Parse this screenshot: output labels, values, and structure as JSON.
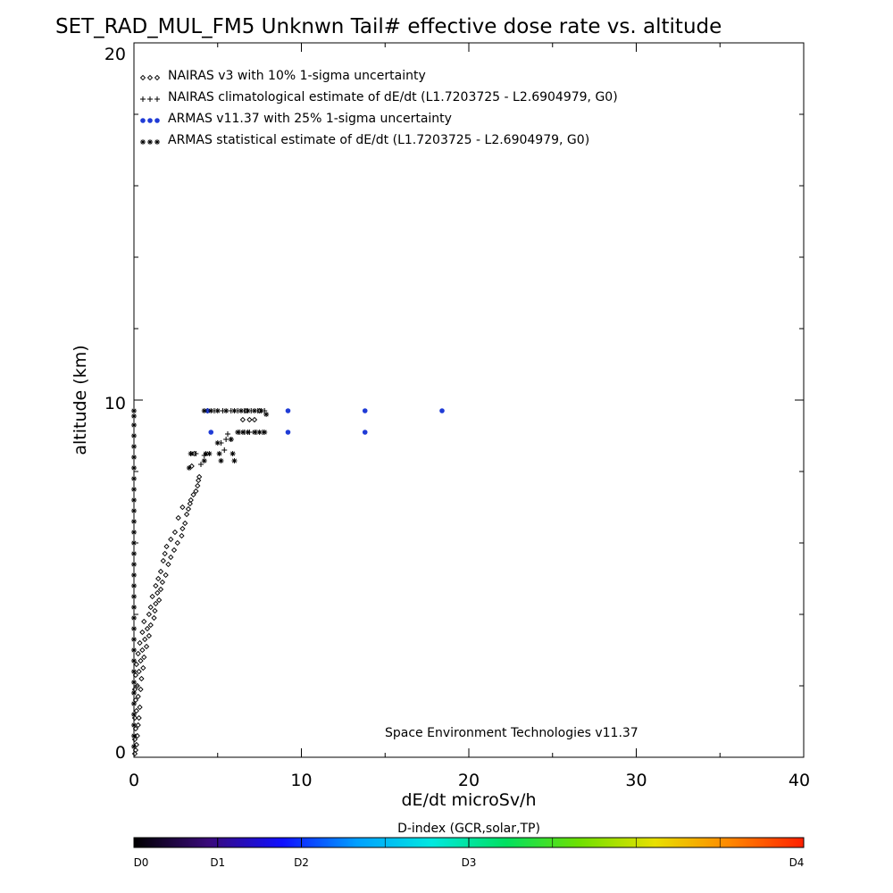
{
  "chart_data": {
    "type": "scatter",
    "title": "SET_RAD_MUL_FM5 Unknwn Tail#  effective dose rate vs. altitude",
    "xlabel": "dE/dt microSv/h",
    "ylabel": "altitude (km)",
    "xlim": [
      0,
      40
    ],
    "ylim": [
      0,
      20
    ],
    "x_ticks": [
      "0",
      "10",
      "20",
      "30",
      "40"
    ],
    "y_ticks": [
      "0",
      "10",
      "20"
    ],
    "grid": false,
    "legend_position": "top-left",
    "annotation": "Space Environment Technologies v11.37",
    "series": [
      {
        "name": "NAIRAS v3 with 10% 1-sigma uncertainty",
        "marker": "diamond",
        "color": "#000000",
        "points": [
          [
            0.05,
            0.1
          ],
          [
            0.1,
            0.2
          ],
          [
            0.15,
            0.35
          ],
          [
            0.05,
            0.5
          ],
          [
            0.2,
            0.6
          ],
          [
            0.1,
            0.8
          ],
          [
            0.25,
            0.9
          ],
          [
            0.05,
            1.1
          ],
          [
            0.3,
            1.1
          ],
          [
            0.15,
            1.3
          ],
          [
            0.35,
            1.4
          ],
          [
            0.1,
            1.6
          ],
          [
            0.25,
            1.7
          ],
          [
            0.05,
            1.9
          ],
          [
            0.4,
            1.9
          ],
          [
            0.2,
            2.0
          ],
          [
            0.45,
            2.2
          ],
          [
            0.1,
            2.3
          ],
          [
            0.3,
            2.4
          ],
          [
            0.55,
            2.5
          ],
          [
            0.15,
            2.6
          ],
          [
            0.4,
            2.7
          ],
          [
            0.6,
            2.8
          ],
          [
            0.25,
            2.9
          ],
          [
            0.5,
            3.0
          ],
          [
            0.75,
            3.1
          ],
          [
            0.35,
            3.2
          ],
          [
            0.65,
            3.3
          ],
          [
            0.9,
            3.4
          ],
          [
            0.5,
            3.5
          ],
          [
            0.8,
            3.6
          ],
          [
            1.0,
            3.7
          ],
          [
            0.6,
            3.8
          ],
          [
            1.2,
            3.9
          ],
          [
            0.9,
            4.0
          ],
          [
            1.25,
            4.1
          ],
          [
            1.0,
            4.2
          ],
          [
            1.3,
            4.3
          ],
          [
            1.5,
            4.4
          ],
          [
            1.1,
            4.5
          ],
          [
            1.4,
            4.6
          ],
          [
            1.6,
            4.7
          ],
          [
            1.3,
            4.8
          ],
          [
            1.7,
            4.9
          ],
          [
            1.45,
            5.0
          ],
          [
            1.9,
            5.1
          ],
          [
            1.6,
            5.2
          ],
          [
            2.05,
            5.4
          ],
          [
            1.75,
            5.5
          ],
          [
            2.2,
            5.6
          ],
          [
            1.85,
            5.7
          ],
          [
            2.4,
            5.8
          ],
          [
            1.95,
            5.9
          ],
          [
            2.6,
            6.0
          ],
          [
            2.2,
            6.1
          ],
          [
            2.85,
            6.2
          ],
          [
            2.45,
            6.3
          ],
          [
            2.9,
            6.4
          ],
          [
            3.05,
            6.55
          ],
          [
            2.65,
            6.7
          ],
          [
            3.15,
            6.8
          ],
          [
            3.25,
            6.95
          ],
          [
            2.9,
            7.0
          ],
          [
            3.35,
            7.1
          ],
          [
            3.4,
            7.2
          ],
          [
            3.55,
            7.35
          ],
          [
            3.7,
            7.45
          ],
          [
            3.8,
            7.6
          ],
          [
            3.85,
            7.75
          ],
          [
            3.9,
            7.85
          ],
          [
            3.45,
            8.15
          ],
          [
            3.6,
            8.5
          ],
          [
            6.5,
            9.45
          ],
          [
            6.9,
            9.45
          ],
          [
            7.2,
            9.45
          ],
          [
            6.7,
            9.7
          ],
          [
            7.5,
            9.7
          ]
        ]
      },
      {
        "name": "NAIRAS climatological estimate of dE/dt (L1.7203725 - L2.6904979, G0)",
        "marker": "plus",
        "color": "#000000",
        "points": [
          [
            3.4,
            8.5
          ],
          [
            3.7,
            8.5
          ],
          [
            4.0,
            8.2
          ],
          [
            4.2,
            8.45
          ],
          [
            5.2,
            8.8
          ],
          [
            5.5,
            8.9
          ],
          [
            5.4,
            8.6
          ],
          [
            5.8,
            8.9
          ],
          [
            5.6,
            9.05
          ],
          [
            6.3,
            9.1
          ],
          [
            6.6,
            9.1
          ],
          [
            6.9,
            9.1
          ],
          [
            7.3,
            9.1
          ],
          [
            7.7,
            9.1
          ],
          [
            4.4,
            9.7
          ],
          [
            4.8,
            9.7
          ],
          [
            5.3,
            9.7
          ],
          [
            5.8,
            9.7
          ],
          [
            6.2,
            9.7
          ],
          [
            6.6,
            9.7
          ],
          [
            7.0,
            9.7
          ],
          [
            7.4,
            9.7
          ],
          [
            7.8,
            9.7
          ]
        ]
      },
      {
        "name": "ARMAS v11.37 with 25% 1-sigma uncertainty",
        "marker": "dot",
        "color": "#1f3bd6",
        "points": [
          [
            4.6,
            9.1
          ],
          [
            9.2,
            9.1
          ],
          [
            13.8,
            9.1
          ],
          [
            4.4,
            9.7
          ],
          [
            9.2,
            9.7
          ],
          [
            13.8,
            9.7
          ],
          [
            18.4,
            9.7
          ]
        ]
      },
      {
        "name": "ARMAS statistical estimate of dE/dt (L1.7203725 - L2.6904979, G0)",
        "marker": "asterisk",
        "color": "#000000",
        "points": [
          [
            0.0,
            0.3
          ],
          [
            0.0,
            0.6
          ],
          [
            0.0,
            0.9
          ],
          [
            0.0,
            1.2
          ],
          [
            0.0,
            1.5
          ],
          [
            0.0,
            1.8
          ],
          [
            0.0,
            2.1
          ],
          [
            0.0,
            2.4
          ],
          [
            0.0,
            2.7
          ],
          [
            0.0,
            3.0
          ],
          [
            0.0,
            3.3
          ],
          [
            0.0,
            3.6
          ],
          [
            0.0,
            3.9
          ],
          [
            0.0,
            4.2
          ],
          [
            0.0,
            4.5
          ],
          [
            0.0,
            4.8
          ],
          [
            0.0,
            5.1
          ],
          [
            0.0,
            5.4
          ],
          [
            0.0,
            5.7
          ],
          [
            0.0,
            6.0
          ],
          [
            0.0,
            6.3
          ],
          [
            0.0,
            6.6
          ],
          [
            0.0,
            6.9
          ],
          [
            0.0,
            7.2
          ],
          [
            0.0,
            7.5
          ],
          [
            0.0,
            7.8
          ],
          [
            0.0,
            8.1
          ],
          [
            0.0,
            8.4
          ],
          [
            0.0,
            8.7
          ],
          [
            0.0,
            9.0
          ],
          [
            0.0,
            9.3
          ],
          [
            0.0,
            9.55
          ],
          [
            0.0,
            9.7
          ],
          [
            3.3,
            8.1
          ],
          [
            3.4,
            8.5
          ],
          [
            4.3,
            8.5
          ],
          [
            4.5,
            8.5
          ],
          [
            4.2,
            8.3
          ],
          [
            5.0,
            8.8
          ],
          [
            5.1,
            8.5
          ],
          [
            5.2,
            8.3
          ],
          [
            5.8,
            8.9
          ],
          [
            5.9,
            8.5
          ],
          [
            6.0,
            8.3
          ],
          [
            6.2,
            9.1
          ],
          [
            6.5,
            9.1
          ],
          [
            6.8,
            9.1
          ],
          [
            7.2,
            9.1
          ],
          [
            7.5,
            9.1
          ],
          [
            7.8,
            9.1
          ],
          [
            4.2,
            9.7
          ],
          [
            4.6,
            9.7
          ],
          [
            5.0,
            9.7
          ],
          [
            5.5,
            9.7
          ],
          [
            6.0,
            9.7
          ],
          [
            6.4,
            9.7
          ],
          [
            6.8,
            9.7
          ],
          [
            7.2,
            9.7
          ],
          [
            7.6,
            9.7
          ],
          [
            7.9,
            9.6
          ]
        ]
      }
    ],
    "colorbar": {
      "title": "D-index (GCR,solar,TP)",
      "labels": [
        {
          "text": "D0",
          "pos": 0.0
        },
        {
          "text": "D1",
          "pos": 0.125
        },
        {
          "text": "D2",
          "pos": 0.25
        },
        {
          "text": "D3",
          "pos": 0.5
        },
        {
          "text": "D4",
          "pos": 1.0
        }
      ],
      "colors": [
        "#000000",
        "#3a0a7a",
        "#1010ff",
        "#00a0ff",
        "#00e8e0",
        "#00e060",
        "#70e000",
        "#e8e000",
        "#ff8800",
        "#ff2000"
      ]
    }
  }
}
